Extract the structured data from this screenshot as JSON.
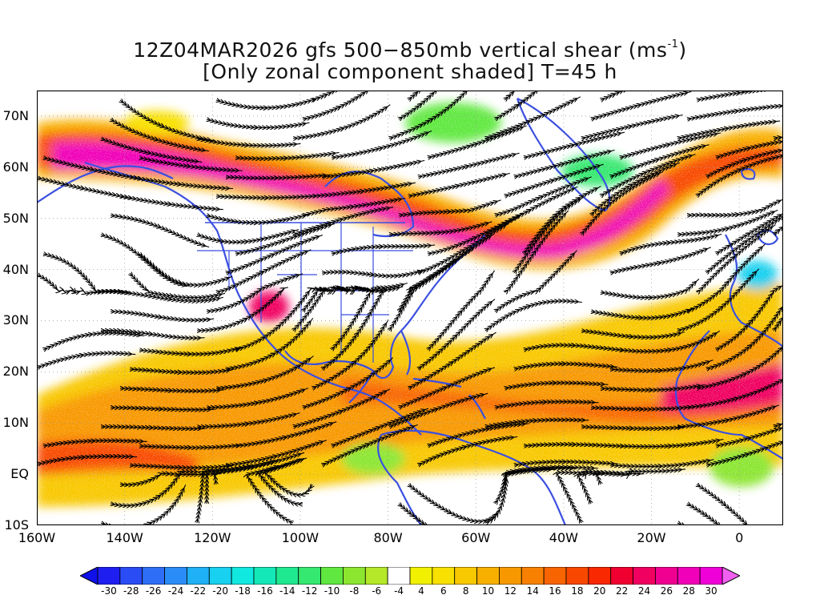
{
  "title": {
    "line1_prefix": "12Z04MAR2026 gfs 500−850mb vertical shear (ms",
    "line1_sup": "-1",
    "line1_suffix": ")",
    "line2": "[Only zonal component shaded] T=45 h"
  },
  "map": {
    "region": "North Atlantic / North America / eastern Pacific",
    "extent": {
      "lon": [
        -160,
        10
      ],
      "lat": [
        -10,
        75
      ]
    },
    "lat_labels": [
      "70N",
      "60N",
      "50N",
      "40N",
      "30N",
      "20N",
      "10N",
      "EQ",
      "10S"
    ],
    "lat_values": [
      70,
      60,
      50,
      40,
      30,
      20,
      10,
      0,
      -10
    ],
    "lon_labels": [
      "160W",
      "140W",
      "120W",
      "100W",
      "80W",
      "60W",
      "40W",
      "20W",
      "0"
    ],
    "lon_values": [
      -160,
      -140,
      -120,
      -100,
      -80,
      -60,
      -40,
      -20,
      0
    ],
    "overlay": "streamlines of 500-850mb vertical shear",
    "coastline_color": "#3b4fe0",
    "streamline_color": "#000000"
  },
  "colorbar": {
    "labels": [
      "-30",
      "-28",
      "-26",
      "-24",
      "-22",
      "-20",
      "-18",
      "-16",
      "-14",
      "-12",
      "-10",
      "-8",
      "-6",
      "-4",
      "4",
      "6",
      "8",
      "10",
      "12",
      "14",
      "16",
      "18",
      "20",
      "22",
      "24",
      "26",
      "28",
      "30"
    ],
    "colors": [
      "#1e1ef0",
      "#2a4cf5",
      "#2e6ef7",
      "#2a8cf7",
      "#1fb0f5",
      "#18d0ef",
      "#10e8e0",
      "#14e8b8",
      "#20e890",
      "#34e870",
      "#60e840",
      "#8ce630",
      "#b4e828",
      "#ffffff",
      "#f0f000",
      "#f8e000",
      "#f8c800",
      "#f8b000",
      "#f89800",
      "#f88000",
      "#f86400",
      "#f84800",
      "#f82800",
      "#f00030",
      "#f00060",
      "#f00090",
      "#f000b8",
      "#f000d8"
    ],
    "end_low": "#1010e8",
    "end_high": "#f060f0"
  }
}
